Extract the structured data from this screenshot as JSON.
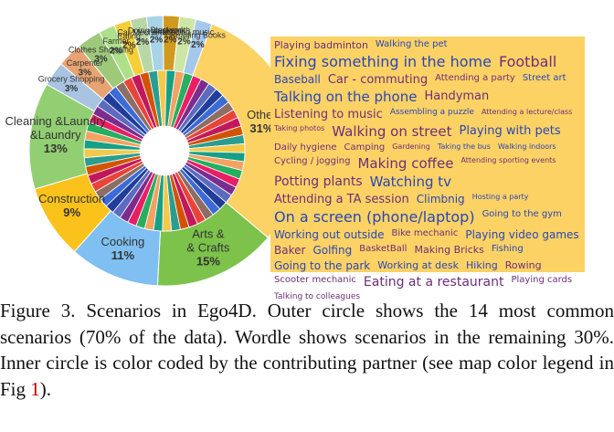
{
  "chart_data": {
    "type": "pie",
    "outer_ring": [
      {
        "label": "Arts & Crafts",
        "value": 15,
        "pct": "15%",
        "color": "#7dc24b"
      },
      {
        "label": "Cooking",
        "value": 11,
        "pct": "11%",
        "color": "#7fbff1"
      },
      {
        "label": "Construction",
        "value": 9,
        "pct": "9%",
        "color": "#fbc21b"
      },
      {
        "label": "Cleaning &Laundry",
        "value": 13,
        "pct": "13%",
        "color": "#92cf72"
      },
      {
        "label": "Grocery Shopping",
        "value": 3,
        "pct": "3%",
        "color": "#a8c4e0"
      },
      {
        "label": "Carpenter",
        "value": 3,
        "pct": "3%",
        "color": "#e8a373"
      },
      {
        "label": "Clothes Shopping",
        "value": 3,
        "pct": "3%",
        "color": "#9ec97b"
      },
      {
        "label": "Farmer",
        "value": 2,
        "pct": "2%",
        "color": "#aee08a"
      },
      {
        "label": "Eating",
        "value": 2,
        "pct": "2%",
        "color": "#f5cf3a"
      },
      {
        "label": "Car Mechanic",
        "value": 2,
        "pct": "2%",
        "color": "#b9d7a6"
      },
      {
        "label": "Doing yardwork",
        "value": 2,
        "pct": "2%",
        "color": "#a9d4e8"
      },
      {
        "label": "Blacksmith",
        "value": 2,
        "pct": "2%",
        "color": "#d09a1f"
      },
      {
        "label": "Practicing music",
        "value": 2,
        "pct": "2%",
        "color": "#cde6a5"
      },
      {
        "label": "Reading Books",
        "value": 2,
        "pct": "2%",
        "color": "#a6c8ea"
      },
      {
        "label": "Other",
        "value": 31,
        "pct": "31%",
        "color": "#fdd264"
      }
    ],
    "inner_ring_colors": [
      "#1f3d99",
      "#e8443a",
      "#2a9d8f",
      "#f4a261",
      "#7b2d8e",
      "#3d6bd6",
      "#c2185b",
      "#f2c94c",
      "#27ae60",
      "#5c6bc0",
      "#8d6e63",
      "#d35400",
      "#16a085",
      "#e91e63"
    ],
    "wordle": [
      {
        "text": "Playing badminton",
        "size": 11,
        "color": "#6b2f7a"
      },
      {
        "text": "Walking the pet",
        "size": 10,
        "color": "#2946b8"
      },
      {
        "text": "Fixing something in the home",
        "size": 16,
        "color": "#2946b8"
      },
      {
        "text": "Football",
        "size": 16,
        "color": "#6b2f7a"
      },
      {
        "text": "Baseball",
        "size": 12,
        "color": "#2946b8"
      },
      {
        "text": "Car - commuting",
        "size": 13,
        "color": "#6b2f7a"
      },
      {
        "text": "Attending a party",
        "size": 10,
        "color": "#6b2f7a"
      },
      {
        "text": "Street art",
        "size": 10,
        "color": "#2946b8"
      },
      {
        "text": "Talking on the phone",
        "size": 15,
        "color": "#2946b8"
      },
      {
        "text": "Handyman",
        "size": 13,
        "color": "#6b2f7a"
      },
      {
        "text": "Listening to music",
        "size": 13,
        "color": "#6b2f7a"
      },
      {
        "text": "Assembling a puzzle",
        "size": 9,
        "color": "#2946b8"
      },
      {
        "text": "Attending a lecture/class",
        "size": 8,
        "color": "#6b2f7a"
      },
      {
        "text": "Taking photos",
        "size": 8,
        "color": "#6b2f7a"
      },
      {
        "text": "Walking on street",
        "size": 15,
        "color": "#6b2f7a"
      },
      {
        "text": "Playing with pets",
        "size": 13,
        "color": "#2946b8"
      },
      {
        "text": "Daily hygiene",
        "size": 10,
        "color": "#6b2f7a"
      },
      {
        "text": "Camping",
        "size": 10,
        "color": "#6b2f7a"
      },
      {
        "text": "Gardening",
        "size": 8,
        "color": "#6b2f7a"
      },
      {
        "text": "Taking the bus",
        "size": 8,
        "color": "#2946b8"
      },
      {
        "text": "Walking indoors",
        "size": 8,
        "color": "#2946b8"
      },
      {
        "text": "Cycling / jogging",
        "size": 10,
        "color": "#6b2f7a"
      },
      {
        "text": "Making coffee",
        "size": 15,
        "color": "#6b2f7a"
      },
      {
        "text": "Attending sporting events",
        "size": 8,
        "color": "#6b2f7a"
      },
      {
        "text": "Potting plants",
        "size": 14,
        "color": "#6b2f7a"
      },
      {
        "text": "Watching tv",
        "size": 15,
        "color": "#2946b8"
      },
      {
        "text": "Attending a TA session",
        "size": 13,
        "color": "#6b2f7a"
      },
      {
        "text": "Climbnig",
        "size": 12,
        "color": "#2946b8"
      },
      {
        "text": "Hosting a party",
        "size": 8,
        "color": "#2946b8"
      },
      {
        "text": "On a screen (phone/laptop)",
        "size": 16,
        "color": "#2946b8"
      },
      {
        "text": "Going to the gym",
        "size": 10,
        "color": "#2946b8"
      },
      {
        "text": "Working out outside",
        "size": 12,
        "color": "#2946b8"
      },
      {
        "text": "Bike mechanic",
        "size": 10,
        "color": "#6b2f7a"
      },
      {
        "text": "Playing video games",
        "size": 12,
        "color": "#2946b8"
      },
      {
        "text": "Baker",
        "size": 12,
        "color": "#6b2f7a"
      },
      {
        "text": "Golfing",
        "size": 12,
        "color": "#2946b8"
      },
      {
        "text": "BasketBall",
        "size": 10,
        "color": "#6b2f7a"
      },
      {
        "text": "Making Bricks",
        "size": 11,
        "color": "#6b2f7a"
      },
      {
        "text": "Fishing",
        "size": 10,
        "color": "#2946b8"
      },
      {
        "text": "Going to the park",
        "size": 12,
        "color": "#2946b8"
      },
      {
        "text": "Working at desk",
        "size": 11,
        "color": "#2946b8"
      },
      {
        "text": "Hiking",
        "size": 11,
        "color": "#2946b8"
      },
      {
        "text": "Rowing",
        "size": 11,
        "color": "#6b2f7a"
      },
      {
        "text": "Scooter mechanic",
        "size": 10,
        "color": "#6b2f7a"
      },
      {
        "text": "Eating at a restaurant",
        "size": 14,
        "color": "#6b2f7a"
      },
      {
        "text": "Playing cards",
        "size": 10,
        "color": "#6b2f7a"
      },
      {
        "text": "Talking to colleagues",
        "size": 9,
        "color": "#6b2f7a"
      }
    ]
  },
  "caption": {
    "text": "Figure 3.  Scenarios in Ego4D. Outer circle shows the 14 most common scenarios (70% of the data). Wordle shows scenarios in the remaining 30%. Inner circle is color coded by the contributing partner (see map color legend in Fig ",
    "ref": "1",
    "end": ")."
  }
}
